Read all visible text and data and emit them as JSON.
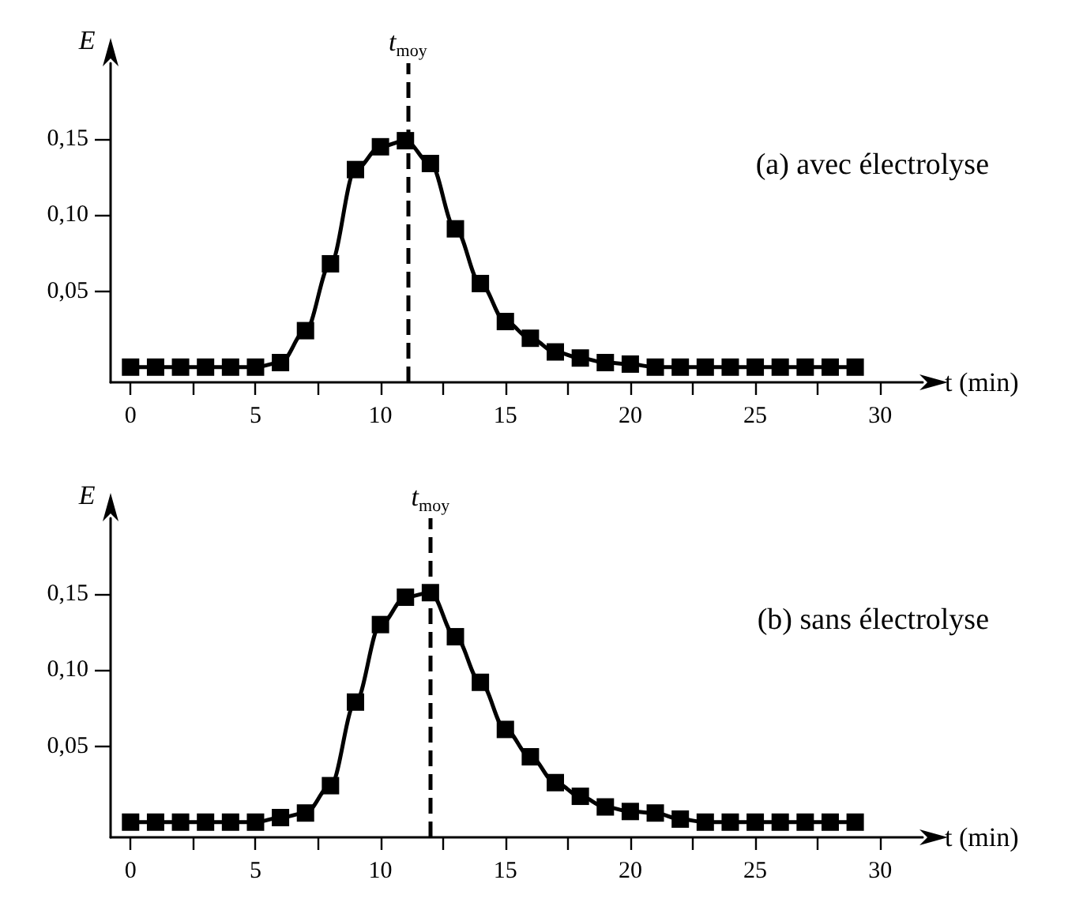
{
  "chart_data": [
    {
      "type": "line",
      "xlabel": "t (min)",
      "ylabel": "E",
      "marker": "square",
      "line_style": "solid",
      "grid": false,
      "annotations": [
        "(a) avec électrolyse"
      ],
      "x": [
        0,
        1,
        2,
        3,
        4,
        5,
        6,
        7,
        8,
        9,
        10,
        11,
        12,
        13,
        14,
        15,
        16,
        17,
        18,
        19,
        20,
        21,
        22,
        23,
        24,
        25,
        26,
        27,
        28,
        29
      ],
      "series": [
        {
          "color": "#000000",
          "values": [
            0,
            0,
            0,
            0,
            0,
            0,
            0.003,
            0.024,
            0.068,
            0.13,
            0.145,
            0.149,
            0.134,
            0.091,
            0.055,
            0.03,
            0.019,
            0.01,
            0.006,
            0.003,
            0.002,
            0,
            0,
            0,
            0,
            0,
            0,
            0,
            0,
            0
          ]
        }
      ],
      "xlim": [
        -0.8,
        31.7
      ],
      "ylim": [
        -0.01,
        0.2
      ],
      "xticks": [
        0,
        {
          "value": 2.5,
          "label": null
        },
        5,
        {
          "value": 7.5,
          "label": null
        },
        10,
        {
          "value": 12.5,
          "label": null
        },
        15,
        {
          "value": 17.5,
          "label": null
        },
        20,
        {
          "value": 22.5,
          "label": null
        },
        25,
        {
          "value": 27.5,
          "label": null
        },
        30
      ],
      "yticks": [
        {
          "value": 0.05,
          "label": "0,05"
        },
        {
          "value": 0.1,
          "label": "0,10"
        },
        {
          "value": 0.15,
          "label": "0,15"
        }
      ],
      "ref_lines": [
        {
          "axis": "x",
          "value": 11.1,
          "label": "t$_{moy}$",
          "line_style": "dashed",
          "color": "#000000"
        }
      ]
    },
    {
      "type": "line",
      "xlabel": "t (min)",
      "ylabel": "E",
      "marker": "square",
      "line_style": "solid",
      "grid": false,
      "annotations": [
        "(b) sans électrolyse"
      ],
      "x": [
        0,
        1,
        2,
        3,
        4,
        5,
        6,
        7,
        8,
        9,
        10,
        11,
        12,
        13,
        14,
        15,
        16,
        17,
        18,
        19,
        20,
        21,
        22,
        23,
        24,
        25,
        26,
        27,
        28,
        29
      ],
      "series": [
        {
          "color": "#000000",
          "values": [
            0,
            0,
            0,
            0,
            0,
            0,
            0.003,
            0.006,
            0.024,
            0.079,
            0.13,
            0.148,
            0.151,
            0.122,
            0.092,
            0.061,
            0.043,
            0.026,
            0.017,
            0.01,
            0.007,
            0.006,
            0.002,
            0,
            0,
            0,
            0,
            0,
            0,
            0
          ]
        }
      ],
      "xlim": [
        -0.8,
        31.7
      ],
      "ylim": [
        -0.01,
        0.2
      ],
      "xticks": [
        0,
        {
          "value": 2.5,
          "label": null
        },
        5,
        {
          "value": 7.5,
          "label": null
        },
        10,
        {
          "value": 12.5,
          "label": null
        },
        15,
        {
          "value": 17.5,
          "label": null
        },
        20,
        {
          "value": 22.5,
          "label": null
        },
        25,
        {
          "value": 27.5,
          "label": null
        },
        30
      ],
      "yticks": [
        {
          "value": 0.05,
          "label": "0,05"
        },
        {
          "value": 0.1,
          "label": "0,10"
        },
        {
          "value": 0.15,
          "label": "0,15"
        }
      ],
      "ref_lines": [
        {
          "axis": "x",
          "value": 12.0,
          "label": "t$_{moy}$",
          "line_style": "dashed",
          "color": "#000000"
        }
      ]
    }
  ]
}
